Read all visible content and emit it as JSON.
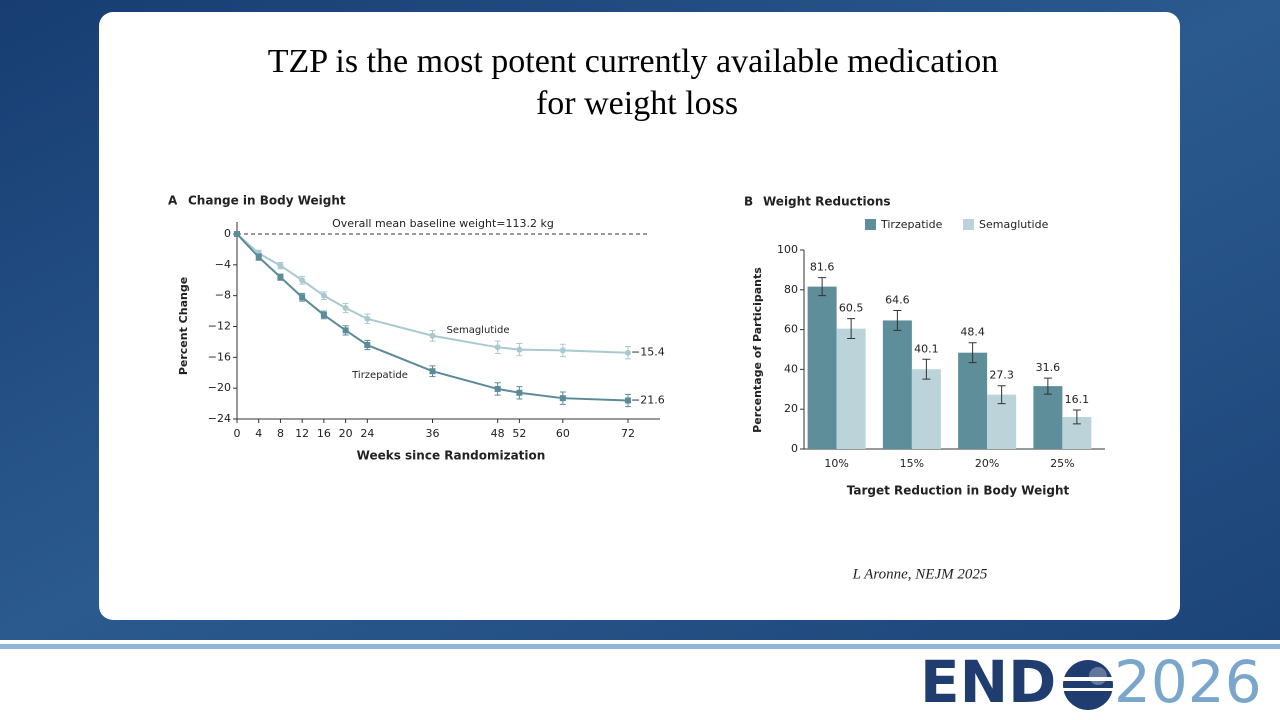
{
  "slide": {
    "title_line1": "TZP is the most potent currently available medication",
    "title_line2": "for weight loss",
    "citation": "L Aronne, NEJM 2025",
    "logo_left": "END",
    "logo_right": "2026"
  },
  "chart_data": [
    {
      "type": "line",
      "panel": "A",
      "title": "Change in Body Weight",
      "y_label": "Percent Change",
      "x_label": "Weeks since Randomization",
      "annotation": "Overall mean baseline weight=113.2 kg",
      "x": [
        0,
        4,
        8,
        12,
        16,
        20,
        24,
        36,
        48,
        52,
        60,
        72
      ],
      "xlim": [
        0,
        78
      ],
      "xticks": [
        0,
        4,
        8,
        12,
        16,
        20,
        24,
        36,
        48,
        52,
        60,
        72
      ],
      "ylim": [
        -24,
        0
      ],
      "yticks": [
        0,
        {
          "value": -4,
          "label": "−4"
        },
        {
          "value": -8,
          "label": "−8"
        },
        {
          "value": -12,
          "label": "−12"
        },
        {
          "value": -16,
          "label": "−16"
        },
        {
          "value": -20,
          "label": "−20"
        },
        {
          "value": -24,
          "label": "−24"
        }
      ],
      "series": [
        {
          "name": "Semaglutide",
          "color": "#a9c9d1",
          "marker": "circle",
          "values": [
            0,
            -2.5,
            -4.1,
            -6.0,
            -8.0,
            -9.6,
            -11.0,
            -13.2,
            -14.7,
            -15.0,
            -15.1,
            -15.4
          ],
          "errors": [
            0,
            0.4,
            0.4,
            0.5,
            0.5,
            0.6,
            0.6,
            0.7,
            0.8,
            0.8,
            0.8,
            0.8
          ],
          "value_labels": [
            null,
            null,
            null,
            null,
            null,
            null,
            null,
            null,
            null,
            null,
            null,
            "−15.4"
          ]
        },
        {
          "name": "Tirzepatide",
          "color": "#5b8b98",
          "marker": "square",
          "values": [
            0,
            -3.0,
            -5.6,
            -8.2,
            -10.5,
            -12.5,
            -14.4,
            -17.8,
            -20.1,
            -20.6,
            -21.3,
            -21.6
          ],
          "errors": [
            0,
            0.4,
            0.4,
            0.5,
            0.5,
            0.6,
            0.6,
            0.7,
            0.8,
            0.8,
            0.8,
            0.8
          ],
          "value_labels": [
            null,
            null,
            null,
            null,
            null,
            null,
            null,
            null,
            null,
            null,
            null,
            "−21.6"
          ]
        }
      ]
    },
    {
      "type": "bar",
      "panel": "B",
      "title": "Weight Reductions",
      "y_label": "Percentage of Participants",
      "x_label": "Target Reduction in Body Weight",
      "categories": [
        "10%",
        "15%",
        "20%",
        "25%"
      ],
      "ylim": [
        0,
        100
      ],
      "yticks": [
        0,
        20,
        40,
        60,
        80,
        100
      ],
      "legend": "top",
      "series": [
        {
          "name": "Tirzepatide",
          "color": "#5e8e9a",
          "values": [
            81.6,
            64.6,
            48.4,
            31.6
          ],
          "errors": [
            4.5,
            5,
            5,
            4
          ]
        },
        {
          "name": "Semaglutide",
          "color": "#bcd3da",
          "values": [
            60.5,
            40.1,
            27.3,
            16.1
          ],
          "errors": [
            5,
            5,
            4.5,
            3.5
          ]
        }
      ]
    }
  ]
}
